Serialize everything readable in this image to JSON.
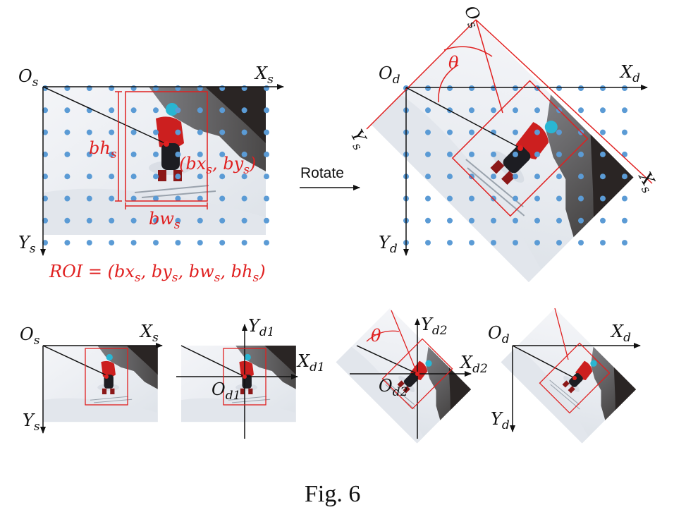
{
  "top_left": {
    "origin": {
      "base": "O",
      "sub": "s"
    },
    "x_axis": {
      "base": "X",
      "sub": "s"
    },
    "y_axis": {
      "base": "Y",
      "sub": "s"
    },
    "bh": {
      "base": "bh",
      "sub": "s"
    },
    "bw": {
      "base": "bw",
      "sub": "s"
    },
    "center": {
      "open": "(bx",
      "s1": "s",
      "mid": ", by",
      "s2": "s",
      "close": ")"
    },
    "roi": {
      "p1": "ROI = (bx",
      "s1": "s",
      "p2": ", by",
      "s2": "s",
      "p3": ", bw",
      "s3": "s",
      "p4": ", bh",
      "s4": "s",
      "p5": ")"
    }
  },
  "rotate_label": "Rotate",
  "top_right": {
    "origin_d": {
      "base": "O",
      "sub": "d"
    },
    "x_axis_d": {
      "base": "X",
      "sub": "d"
    },
    "y_axis_d": {
      "base": "Y",
      "sub": "d"
    },
    "origin_s": {
      "base": "O",
      "sub": "s"
    },
    "x_axis_s": {
      "base": "X",
      "sub": "s"
    },
    "y_axis_s": {
      "base": "Y",
      "sub": "s"
    },
    "theta": "θ"
  },
  "bottom": {
    "panel1": {
      "origin": {
        "base": "O",
        "sub": "s"
      },
      "x_axis": {
        "base": "X",
        "sub": "s"
      },
      "y_axis": {
        "base": "Y",
        "sub": "s"
      }
    },
    "panel2": {
      "y_axis": {
        "base": "Y",
        "sub": "d1"
      },
      "x_axis": {
        "base": "X",
        "sub": "d1"
      },
      "origin": {
        "base": "O",
        "sub": "d1"
      }
    },
    "panel3": {
      "y_axis": {
        "base": "Y",
        "sub": "d2"
      },
      "x_axis": {
        "base": "X",
        "sub": "d2"
      },
      "origin": {
        "base": "O",
        "sub": "d2"
      },
      "theta": "θ"
    },
    "panel4": {
      "origin": {
        "base": "O",
        "sub": "d"
      },
      "x_axis": {
        "base": "X",
        "sub": "d"
      },
      "y_axis": {
        "base": "Y",
        "sub": "d"
      }
    }
  },
  "caption": "Fig. 6",
  "colors": {
    "dot": "#5b9bd5",
    "roi": "#e02020",
    "axis": "#111111"
  }
}
